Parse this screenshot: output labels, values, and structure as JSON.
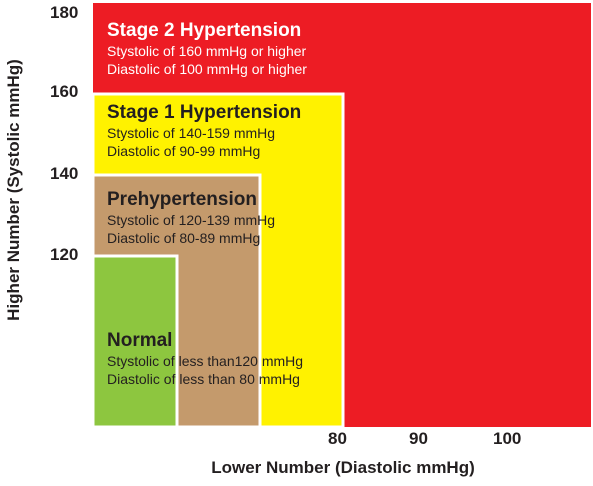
{
  "chart_data": {
    "type": "area",
    "xlabel": "Lower Number (Diastolic mmHg)",
    "ylabel": "Higher Number (Systolic mmHg)",
    "x_ticks": [
      "80",
      "90",
      "100"
    ],
    "y_ticks": [
      "180",
      "160",
      "140",
      "120"
    ],
    "zones": [
      {
        "name": "Stage 2 Hypertension",
        "lines": [
          "Stystolic of 160 mmHg or higher",
          "Diastolic of 100 mmHg or higher"
        ],
        "color": "#ed1c24",
        "text_color": "#ffffff",
        "systolic_from": 160,
        "diastolic_from": 100
      },
      {
        "name": "Stage 1 Hypertension",
        "lines": [
          "Stystolic of 140-159 mmHg",
          "Diastolic of 90-99 mmHg"
        ],
        "color": "#fff200",
        "text_color": "#231f20",
        "systolic_from": 140,
        "systolic_to": 159,
        "diastolic_from": 90,
        "diastolic_to": 99
      },
      {
        "name": "Prehypertension",
        "lines": [
          "Stystolic of 120-139 mmHg",
          "Diastolic of 80-89 mmHg"
        ],
        "color": "#c49a6c",
        "text_color": "#231f20",
        "systolic_from": 120,
        "systolic_to": 139,
        "diastolic_from": 80,
        "diastolic_to": 89
      },
      {
        "name": "Normal",
        "lines": [
          "Stystolic of less than120 mmHg",
          "Diastolic of less than 80 mmHg"
        ],
        "color": "#8dc63f",
        "text_color": "#231f20",
        "systolic_to": 120,
        "diastolic_to": 80
      }
    ],
    "zone_border_color": "#ffffff"
  }
}
